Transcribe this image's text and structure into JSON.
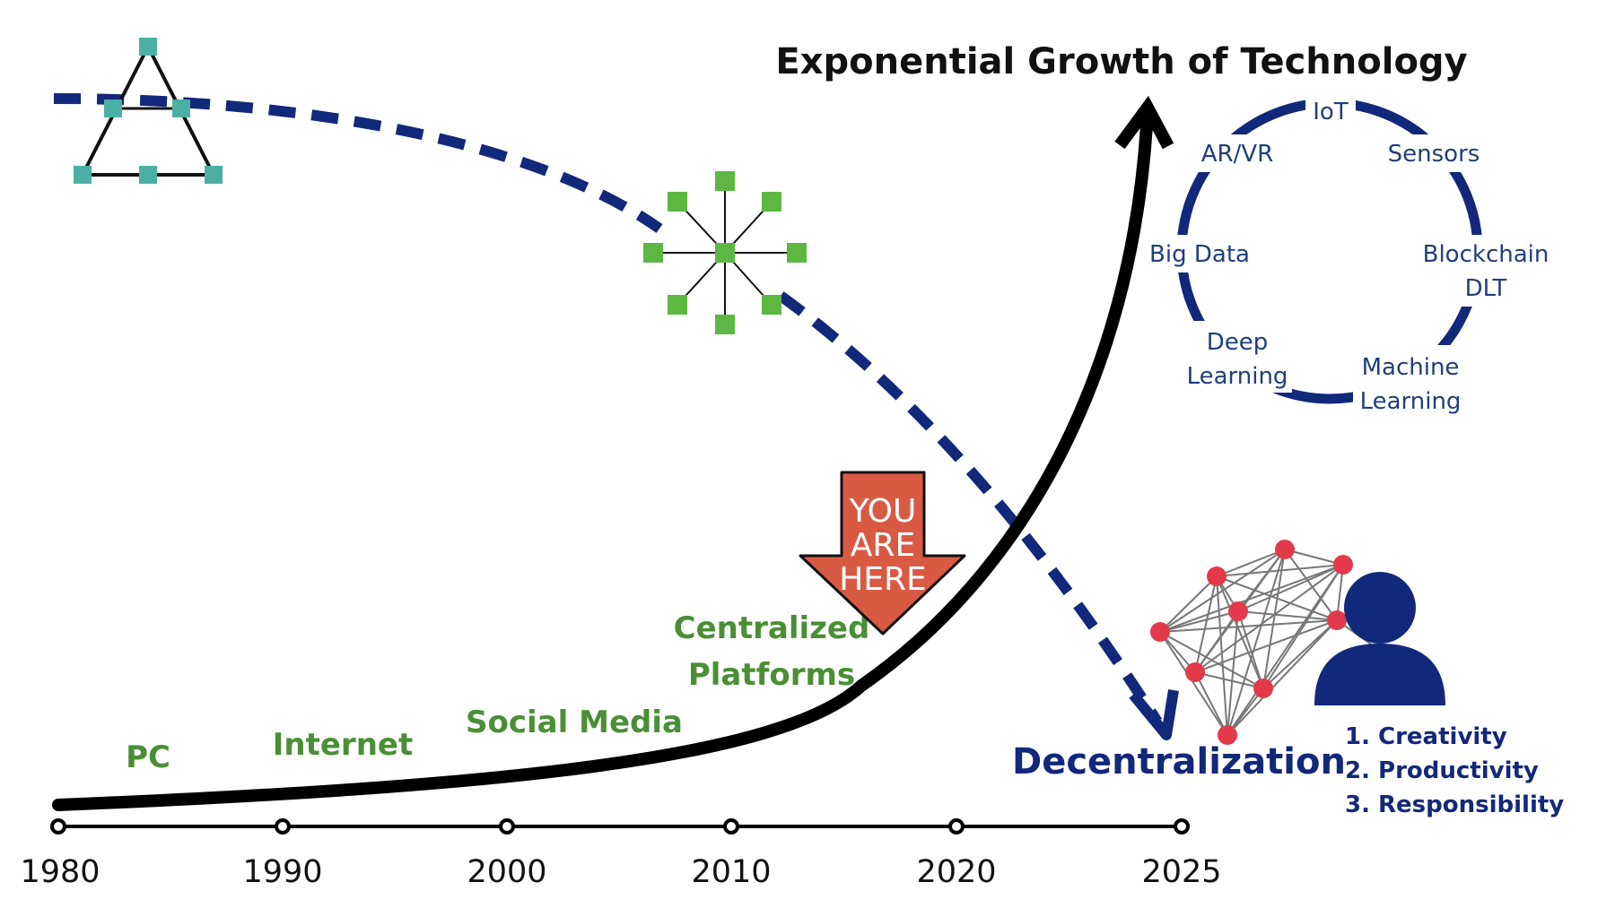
{
  "title": "Exponential Growth of Technology",
  "colors": {
    "curve": "#000000",
    "dashed": "#12287a",
    "era_green": "#4a8f35",
    "node_teal": "#4ab0a3",
    "node_green": "#5cb842",
    "node_red": "#e23a4a",
    "arrow_red": "#d85a43",
    "navy": "#12287a"
  },
  "timeline": {
    "years": [
      "1980",
      "1990",
      "2000",
      "2010",
      "2020",
      "2025"
    ]
  },
  "eras": [
    "PC",
    "Internet",
    "Social Media",
    "Centralized",
    "Platforms"
  ],
  "marker": {
    "line1": "YOU",
    "line2": "ARE",
    "line3": "HERE"
  },
  "tech_cycle": {
    "items": [
      "IoT",
      "Sensors",
      "Blockchain",
      "DLT",
      "Machine",
      "Learning",
      "Deep",
      "Learning",
      "Big Data",
      "AR/VR"
    ]
  },
  "decentralization": {
    "label": "Decentralization",
    "values": [
      "1.  Creativity",
      "2.  Productivity",
      "3.  Responsibility"
    ]
  },
  "icons": {
    "triangle_network": "mesh-triangle-network-icon",
    "star_network": "hub-star-network-icon",
    "full_mesh": "full-mesh-network-icon",
    "person": "person-icon",
    "marker": "you-are-here-arrow-icon"
  }
}
